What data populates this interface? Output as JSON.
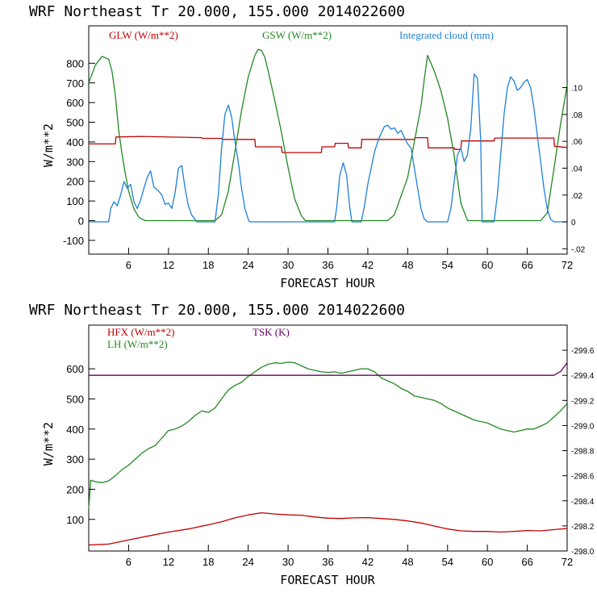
{
  "colors": {
    "red": "#c00000",
    "green": "#228822",
    "blue": "#1e7fd8",
    "purple": "#660066"
  },
  "chart_data": [
    {
      "type": "line",
      "title": "WRF  Northeast Tr  20.000, 155.000  2014022600",
      "xlabel": "FORECAST HOUR",
      "ylabel": "W/m**2",
      "xlim": [
        0,
        72
      ],
      "ylim": [
        -170,
        990
      ],
      "xticks": [
        "6",
        "12",
        "18",
        "24",
        "30",
        "36",
        "42",
        "48",
        "54",
        "60",
        "66",
        "72"
      ],
      "yticks": [
        "800",
        "700",
        "600",
        "500",
        "400",
        "300",
        "200",
        "100",
        "0",
        "-100"
      ],
      "y2lim": [
        -0.024,
        0.146
      ],
      "y2ticks": [
        ".10",
        ".08",
        ".06",
        ".04",
        ".02",
        "0",
        "-.02"
      ],
      "legend": {
        "glw": "GLW (W/m**2)",
        "gsw": "GSW (W/m**2)",
        "cloud": "Integrated cloud (mm)"
      },
      "series": [
        {
          "name": "GLW (W/m**2)",
          "axis": "left",
          "color": "red",
          "x": [
            0,
            4,
            4.1,
            8,
            17,
            17.1,
            20,
            20.1,
            25,
            25.1,
            29,
            29.1,
            35,
            35.1,
            37,
            37.1,
            39,
            39.1,
            41,
            41.1,
            49,
            49.1,
            51,
            51.1,
            55,
            55.1,
            56,
            56.1,
            61,
            61.1,
            70,
            70.1,
            72
          ],
          "y": [
            390,
            390,
            425,
            428,
            422,
            418,
            418,
            413,
            413,
            375,
            375,
            346,
            346,
            375,
            375,
            393,
            393,
            370,
            370,
            413,
            413,
            422,
            422,
            370,
            370,
            362,
            362,
            405,
            405,
            420,
            420,
            378,
            372
          ]
        },
        {
          "name": "GSW (W/m**2)",
          "axis": "left",
          "color": "green",
          "x": [
            0,
            1,
            2,
            3,
            3.5,
            4,
            4.5,
            5,
            5.5,
            6,
            6.8,
            7.6,
            8.5,
            9,
            16,
            19,
            20,
            21,
            22,
            23,
            24,
            25,
            25.5,
            26,
            26.5,
            27,
            28,
            29,
            30,
            31,
            32,
            32.6,
            33,
            45,
            46,
            48,
            49,
            50,
            50.5,
            51,
            52,
            53,
            54,
            55,
            55.5,
            56,
            57,
            68,
            69,
            70,
            71,
            72
          ],
          "y": [
            700,
            790,
            835,
            820,
            760,
            640,
            460,
            340,
            240,
            150,
            60,
            15,
            0,
            0,
            0,
            0,
            30,
            150,
            350,
            560,
            730,
            840,
            870,
            865,
            830,
            760,
            610,
            450,
            270,
            110,
            25,
            0,
            0,
            0,
            30,
            220,
            400,
            580,
            720,
            840,
            760,
            660,
            520,
            330,
            210,
            90,
            0,
            0,
            40,
            260,
            490,
            690
          ]
        },
        {
          "name": "Integrated cloud (mm)",
          "axis": "right",
          "color": "blue",
          "x": [
            0,
            3,
            3.3,
            3.8,
            4.3,
            4.8,
            5.3,
            5.8,
            6.3,
            6.8,
            7.3,
            7.8,
            8.3,
            8.8,
            9.3,
            9.8,
            10.5,
            11,
            11.5,
            12,
            12.5,
            13,
            13.5,
            14,
            14.5,
            15,
            15.5,
            16,
            16.2,
            19,
            19.5,
            20,
            20.5,
            21,
            21.5,
            22,
            22.5,
            23,
            23.5,
            24,
            24.2,
            37,
            37.3,
            37.8,
            38.3,
            38.8,
            39.3,
            39.6,
            41,
            41.5,
            42,
            42.5,
            43,
            43.5,
            44,
            44.5,
            45,
            45.5,
            46,
            46.5,
            47,
            47.5,
            48,
            48.5,
            49,
            49.5,
            50,
            50.5,
            51,
            51.3,
            54,
            54.5,
            55,
            55.5,
            56,
            56.5,
            57,
            57.5,
            58,
            58.5,
            59,
            59.2,
            61,
            61.5,
            62,
            62.5,
            63,
            63.5,
            64,
            64.5,
            65,
            65.5,
            66,
            66.5,
            67,
            67.5,
            68,
            68.5,
            69,
            69.5,
            70,
            72
          ],
          "y": [
            0,
            0,
            0.01,
            0.015,
            0.012,
            0.02,
            0.03,
            0.025,
            0.028,
            0.015,
            0.01,
            0.016,
            0.025,
            0.033,
            0.038,
            0.026,
            0.023,
            0.02,
            0.013,
            0.014,
            0.01,
            0.022,
            0.04,
            0.042,
            0.025,
            0.012,
            0.005,
            0.002,
            0,
            0,
            0.02,
            0.055,
            0.08,
            0.087,
            0.078,
            0.06,
            0.045,
            0.025,
            0.01,
            0.002,
            0,
            0,
            0.01,
            0.035,
            0.044,
            0.035,
            0.01,
            0,
            0,
            0.012,
            0.028,
            0.04,
            0.052,
            0.06,
            0.066,
            0.071,
            0.072,
            0.069,
            0.07,
            0.066,
            0.068,
            0.063,
            0.058,
            0.055,
            0.04,
            0.025,
            0.01,
            0.002,
            0,
            0,
            0,
            0.01,
            0.03,
            0.05,
            0.055,
            0.045,
            0.05,
            0.07,
            0.11,
            0.107,
            0.06,
            0,
            0,
            0.02,
            0.05,
            0.08,
            0.1,
            0.108,
            0.105,
            0.098,
            0.1,
            0.104,
            0.106,
            0.1,
            0.085,
            0.065,
            0.045,
            0.025,
            0.01,
            0.002,
            0,
            0
          ]
        }
      ]
    },
    {
      "type": "line",
      "title": "WRF  Northeast Tr  20.000, 155.000  2014022600",
      "xlabel": "FORECAST HOUR",
      "ylabel": "W/m**2",
      "xlim": [
        0,
        72
      ],
      "ylim": [
        -5,
        745
      ],
      "xticks": [
        "6",
        "12",
        "18",
        "24",
        "30",
        "36",
        "42",
        "48",
        "54",
        "60",
        "66",
        "72"
      ],
      "yticks": [
        "600",
        "500",
        "400",
        "300",
        "200",
        "100"
      ],
      "y2lim": [
        298.0,
        299.8
      ],
      "y2ticks": [
        "299.6",
        "299.4",
        "299.2",
        "299.0",
        "298.8",
        "298.6",
        "298.4",
        "298.2",
        "298.0"
      ],
      "legend": {
        "hfx": "HFX (W/m**2)",
        "lh": "LH  (W/m**2)",
        "tsk": "TSK (K)"
      },
      "series": [
        {
          "name": "HFX (W/m**2)",
          "axis": "left",
          "color": "red",
          "x": [
            0,
            3,
            6,
            9,
            12,
            15,
            18,
            20,
            22,
            24,
            26,
            28,
            30,
            32,
            34,
            36,
            38,
            40,
            42,
            44,
            46,
            48,
            50,
            52,
            54,
            56,
            58,
            60,
            62,
            64,
            66,
            68,
            70,
            72
          ],
          "y": [
            15,
            18,
            32,
            45,
            58,
            68,
            82,
            92,
            105,
            115,
            122,
            118,
            115,
            114,
            108,
            104,
            103,
            105,
            106,
            103,
            100,
            95,
            88,
            78,
            68,
            62,
            60,
            60,
            58,
            60,
            63,
            62,
            66,
            70
          ]
        },
        {
          "name": "LH (W/m**2)",
          "axis": "left",
          "color": "green",
          "x": [
            0,
            0.3,
            1,
            2,
            3,
            4,
            5,
            6,
            7,
            8,
            9,
            10,
            11,
            12,
            13,
            14,
            15,
            16,
            17,
            18,
            19,
            20,
            21,
            22,
            23,
            24,
            25,
            26,
            27,
            28,
            29,
            30,
            31,
            32,
            33,
            34,
            35,
            36,
            37,
            38,
            39,
            40,
            41,
            42,
            43,
            44,
            45,
            46,
            47,
            48,
            49,
            50,
            51,
            52,
            53,
            54,
            55,
            56,
            57,
            58,
            59,
            60,
            61,
            62,
            63,
            64,
            65,
            66,
            67,
            68,
            69,
            70,
            71,
            72
          ],
          "y": [
            135,
            230,
            225,
            222,
            228,
            245,
            265,
            280,
            300,
            320,
            335,
            345,
            370,
            395,
            400,
            410,
            425,
            445,
            460,
            455,
            470,
            500,
            530,
            545,
            555,
            575,
            590,
            605,
            615,
            620,
            618,
            622,
            620,
            610,
            600,
            595,
            590,
            588,
            590,
            585,
            590,
            595,
            600,
            600,
            590,
            570,
            560,
            550,
            535,
            525,
            510,
            505,
            500,
            495,
            485,
            470,
            460,
            450,
            440,
            430,
            425,
            420,
            410,
            400,
            395,
            390,
            395,
            400,
            400,
            410,
            420,
            440,
            460,
            485
          ]
        },
        {
          "name": "TSK (K)",
          "axis": "right",
          "color": "purple",
          "x": [
            0,
            70,
            71,
            72
          ],
          "y": [
            299.4,
            299.4,
            299.43,
            299.5
          ]
        }
      ]
    }
  ]
}
